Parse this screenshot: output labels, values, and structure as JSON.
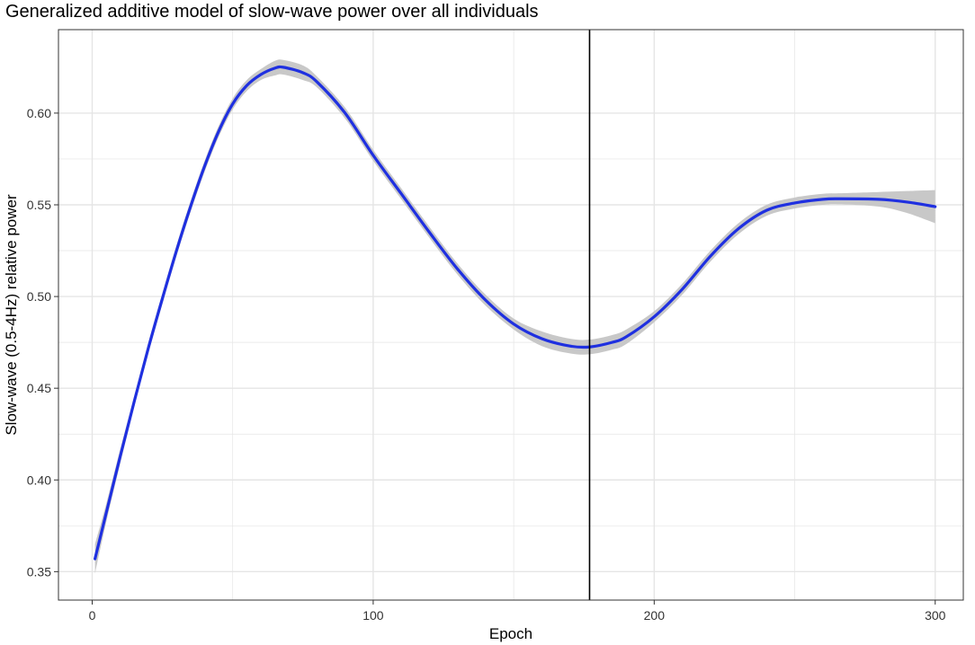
{
  "chart_data": {
    "type": "line",
    "title": "Generalized additive model of slow-wave power over all individuals",
    "xlabel": "Epoch",
    "ylabel": "Slow-wave (0.5-4Hz) relative power",
    "xlim": [
      -12,
      310
    ],
    "ylim": [
      0.3345,
      0.6455
    ],
    "x_ticks": [
      0,
      100,
      200,
      300
    ],
    "x_tick_labels": [
      "0",
      "100",
      "200",
      "300"
    ],
    "y_ticks": [
      0.35,
      0.4,
      0.45,
      0.5,
      0.55,
      0.6
    ],
    "y_tick_labels": [
      "0.35",
      "0.40",
      "0.45",
      "0.50",
      "0.55",
      "0.60"
    ],
    "grid": true,
    "vline_x": 177,
    "colors": {
      "line": "#1f30e0",
      "ribbon": "#c8c8c8",
      "vline": "#000000",
      "grid": "#e5e5e5"
    },
    "series": [
      {
        "x": [
          1,
          5,
          10,
          15,
          20,
          25,
          30,
          35,
          40,
          45,
          50,
          55,
          60,
          65,
          68,
          75,
          80,
          90,
          100,
          110,
          120,
          130,
          140,
          150,
          160,
          170,
          177,
          185,
          190,
          200,
          210,
          220,
          230,
          240,
          250,
          260,
          266,
          280,
          290,
          300
        ],
        "y": [
          0.357,
          0.382,
          0.413,
          0.443,
          0.472,
          0.499,
          0.525,
          0.549,
          0.571,
          0.59,
          0.605,
          0.615,
          0.621,
          0.6245,
          0.625,
          0.622,
          0.617,
          0.6,
          0.577,
          0.556,
          0.535,
          0.515,
          0.498,
          0.485,
          0.477,
          0.473,
          0.4725,
          0.475,
          0.478,
          0.489,
          0.504,
          0.522,
          0.537,
          0.547,
          0.551,
          0.553,
          0.5533,
          0.553,
          0.5515,
          0.549
        ],
        "band": [
          0.008,
          0.005,
          0.004,
          0.003,
          0.003,
          0.003,
          0.003,
          0.003,
          0.003,
          0.003,
          0.003,
          0.003,
          0.003,
          0.004,
          0.004,
          0.004,
          0.003,
          0.003,
          0.003,
          0.003,
          0.003,
          0.003,
          0.003,
          0.003,
          0.004,
          0.004,
          0.004,
          0.004,
          0.004,
          0.003,
          0.003,
          0.003,
          0.003,
          0.003,
          0.003,
          0.003,
          0.003,
          0.004,
          0.006,
          0.009
        ]
      }
    ]
  }
}
